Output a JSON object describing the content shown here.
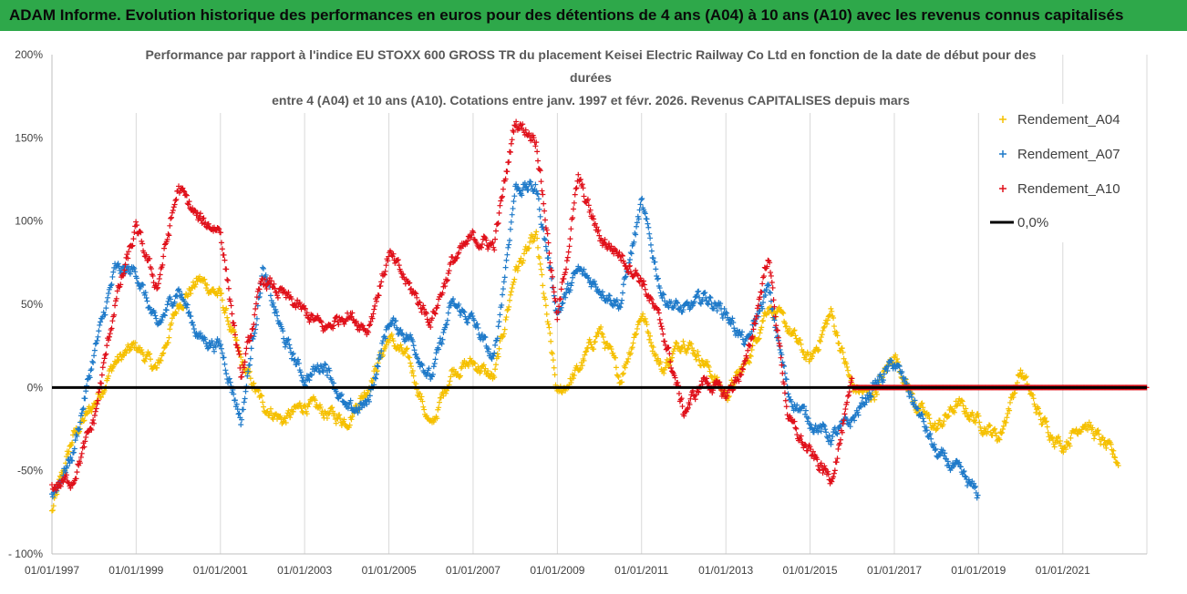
{
  "banner": {
    "text": "ADAM Informe. Evolution historique des performances en euros pour des détentions de 4 ans (A04) à 10 ans (A10) avec les revenus connus capitalisés"
  },
  "colors": {
    "banner_bg": "#2ea84a",
    "A04": "#f5c000",
    "A07": "#1f7ac9",
    "A10": "#e0101a",
    "zero_line": "#000000",
    "grid": "#d9d9d9"
  },
  "chart_data": {
    "type": "scatter",
    "title_lines": [
      "Performance par rapport à l'indice EU STOXX 600 GROSS TR  du placement Keisei Electric Railway Co Ltd en fonction de la date de début pour des",
      "durées",
      "entre 4 (A04) et 10 ans (A10). Cotations entre janv. 1997 et févr. 2026. Revenus CAPITALISES depuis mars"
    ],
    "xlabel": "",
    "ylabel": "",
    "x_range": [
      "1997-01-01",
      "2022-12-31"
    ],
    "ylim": [
      -100,
      200
    ],
    "y_ticks": [
      -100,
      -50,
      0,
      50,
      100,
      150,
      200
    ],
    "y_tick_labels": [
      "- 100%",
      "-50%",
      "0%",
      "50%",
      "100%",
      "150%",
      "200%"
    ],
    "x_tick_labels": [
      "01/01/1997",
      "01/01/1999",
      "01/01/2001",
      "01/01/2003",
      "01/01/2005",
      "01/01/2007",
      "01/01/2009",
      "01/01/2011",
      "01/01/2013",
      "01/01/2015",
      "01/01/2017",
      "01/01/2019",
      "01/01/2021"
    ],
    "x_tick_dates": [
      "1997-01-01",
      "1999-01-01",
      "2001-01-01",
      "2003-01-01",
      "2005-01-01",
      "2007-01-01",
      "2009-01-01",
      "2011-01-01",
      "2013-01-01",
      "2015-01-01",
      "2017-01-01",
      "2019-01-01",
      "2021-01-01"
    ],
    "grid": "vertical",
    "legend_position": "right",
    "legend": [
      {
        "name": "Rendement_A04",
        "marker": "+",
        "color": "#f5c000"
      },
      {
        "name": "Rendement_A07",
        "marker": "+",
        "color": "#1f7ac9"
      },
      {
        "name": "Rendement_A10",
        "marker": "+",
        "color": "#e0101a"
      },
      {
        "name": "0,0%",
        "marker": "line",
        "color": "#000000"
      }
    ],
    "series": [
      {
        "name": "Rendement_A04",
        "x": [
          "1997-01-01",
          "1997-07-01",
          "1998-01-01",
          "1998-07-01",
          "1999-01-01",
          "1999-07-01",
          "2000-01-01",
          "2000-07-01",
          "2001-01-01",
          "2001-07-01",
          "2002-01-01",
          "2002-07-01",
          "2003-01-01",
          "2003-07-01",
          "2004-01-01",
          "2004-07-01",
          "2005-01-01",
          "2005-07-01",
          "2006-01-01",
          "2006-07-01",
          "2007-01-01",
          "2007-07-01",
          "2008-01-01",
          "2008-07-01",
          "2009-01-01",
          "2009-07-01",
          "2010-01-01",
          "2010-07-01",
          "2011-01-01",
          "2011-07-01",
          "2012-01-01",
          "2012-07-01",
          "2013-01-01",
          "2013-07-01",
          "2014-01-01",
          "2014-07-01",
          "2015-01-01",
          "2015-07-01",
          "2016-01-01",
          "2016-07-01",
          "2017-01-01",
          "2017-07-01",
          "2018-01-01",
          "2018-07-01",
          "2019-01-01",
          "2019-07-01",
          "2020-01-01",
          "2020-07-01",
          "2021-01-01",
          "2021-07-01",
          "2022-01-01",
          "2022-05-01"
        ],
        "y": [
          -75,
          -30,
          -10,
          15,
          25,
          10,
          50,
          65,
          55,
          15,
          -10,
          -20,
          -10,
          -15,
          -20,
          0,
          30,
          15,
          -25,
          10,
          15,
          5,
          70,
          90,
          -5,
          10,
          35,
          5,
          45,
          10,
          30,
          15,
          -5,
          15,
          50,
          35,
          15,
          45,
          0,
          -5,
          20,
          -10,
          -25,
          -10,
          -20,
          -30,
          10,
          -20,
          -35,
          -20,
          -35,
          -45
        ]
      },
      {
        "name": "Rendement_A07",
        "x": [
          "1997-01-01",
          "1997-07-01",
          "1998-01-01",
          "1998-07-01",
          "1999-01-01",
          "1999-07-01",
          "2000-01-01",
          "2000-07-01",
          "2001-01-01",
          "2001-07-01",
          "2002-01-01",
          "2002-07-01",
          "2003-01-01",
          "2003-07-01",
          "2004-01-01",
          "2004-07-01",
          "2005-01-01",
          "2005-07-01",
          "2006-01-01",
          "2006-07-01",
          "2007-01-01",
          "2007-07-01",
          "2008-01-01",
          "2008-07-01",
          "2009-01-01",
          "2009-07-01",
          "2010-01-01",
          "2010-07-01",
          "2011-01-01",
          "2011-07-01",
          "2012-01-01",
          "2012-07-01",
          "2013-01-01",
          "2013-07-01",
          "2014-01-01",
          "2014-07-01",
          "2015-01-01",
          "2015-07-01",
          "2016-01-01",
          "2016-07-01",
          "2017-01-01",
          "2017-07-01",
          "2018-01-01",
          "2018-07-01",
          "2019-01-01"
        ],
        "y": [
          -65,
          -40,
          20,
          70,
          70,
          35,
          60,
          30,
          25,
          -20,
          70,
          30,
          5,
          15,
          -15,
          -10,
          40,
          30,
          5,
          50,
          40,
          15,
          120,
          120,
          45,
          70,
          60,
          50,
          110,
          55,
          45,
          55,
          45,
          25,
          60,
          -5,
          -20,
          -30,
          -20,
          0,
          15,
          -10,
          -40,
          -50,
          -65
        ]
      },
      {
        "name": "Rendement_A10",
        "x": [
          "1997-01-01",
          "1997-07-01",
          "1998-01-01",
          "1998-07-01",
          "1999-01-01",
          "1999-07-01",
          "2000-01-01",
          "2000-07-01",
          "2001-01-01",
          "2001-07-01",
          "2002-01-01",
          "2002-07-01",
          "2003-01-01",
          "2003-07-01",
          "2004-01-01",
          "2004-07-01",
          "2005-01-01",
          "2005-07-01",
          "2006-01-01",
          "2006-07-01",
          "2007-01-01",
          "2007-07-01",
          "2008-01-01",
          "2008-07-01",
          "2009-01-01",
          "2009-07-01",
          "2010-01-01",
          "2010-07-01",
          "2011-01-01",
          "2011-07-01",
          "2012-01-01",
          "2012-07-01",
          "2013-01-01",
          "2013-07-01",
          "2014-01-01",
          "2014-07-01",
          "2015-01-01",
          "2015-07-01",
          "2016-01-01",
          "2016-07-01",
          "2017-01-01",
          "2017-07-01",
          "2018-01-01",
          "2018-07-01",
          "2019-01-01",
          "2019-07-01",
          "2020-01-01",
          "2020-07-01",
          "2021-01-01",
          "2021-07-01",
          "2022-01-01",
          "2022-12-31"
        ],
        "y": [
          -60,
          -55,
          -20,
          50,
          95,
          60,
          120,
          100,
          95,
          5,
          65,
          55,
          45,
          35,
          45,
          35,
          80,
          60,
          40,
          75,
          90,
          85,
          160,
          150,
          40,
          125,
          90,
          80,
          65,
          35,
          -15,
          5,
          -5,
          15,
          80,
          -20,
          -40,
          -55,
          0,
          0,
          0,
          0,
          0,
          0,
          0,
          0,
          0,
          0,
          0,
          0,
          0,
          0
        ]
      }
    ]
  }
}
